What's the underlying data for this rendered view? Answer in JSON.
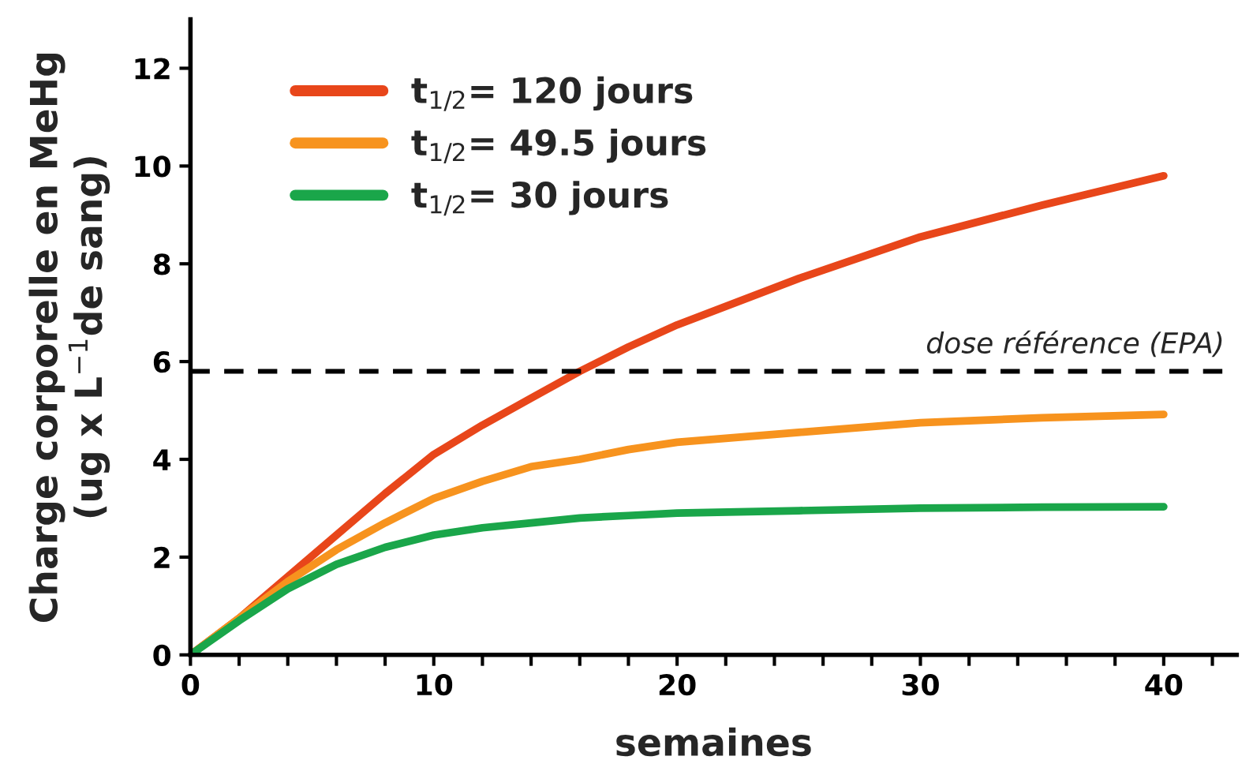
{
  "chart_data": {
    "type": "line",
    "xlabel": "semaines",
    "ylabel": "Charge corporelle en MeHg\n(ug x L$^{−1}$de sang)",
    "x": [
      0,
      2,
      4,
      6,
      8,
      10,
      12,
      14,
      16,
      18,
      20,
      25,
      30,
      35,
      40
    ],
    "series": [
      {
        "name": "t$_{1/2}$= 120 jours",
        "color": "#e8461a",
        "values": [
          0,
          0.75,
          1.6,
          2.45,
          3.3,
          4.1,
          4.7,
          5.25,
          5.8,
          6.3,
          6.75,
          7.7,
          8.55,
          9.2,
          9.8
        ]
      },
      {
        "name": "t$_{1/2}$= 49.5 jours",
        "color": "#f7931e",
        "values": [
          0,
          0.75,
          1.5,
          2.15,
          2.7,
          3.2,
          3.55,
          3.85,
          4.0,
          4.2,
          4.35,
          4.55,
          4.75,
          4.85,
          4.92
        ]
      },
      {
        "name": "t$_{1/2}$= 30 jours",
        "color": "#1aa64a",
        "values": [
          0,
          0.7,
          1.35,
          1.85,
          2.2,
          2.45,
          2.6,
          2.7,
          2.8,
          2.85,
          2.9,
          2.95,
          3.0,
          3.02,
          3.03
        ]
      }
    ],
    "xlim": [
      0,
      43
    ],
    "ylim": [
      0,
      13
    ],
    "xticks": [
      0,
      {
        "value": 2,
        "label": null
      },
      {
        "value": 4,
        "label": null
      },
      {
        "value": 6,
        "label": null
      },
      {
        "value": 8,
        "label": null
      },
      10,
      {
        "value": 12,
        "label": null
      },
      {
        "value": 14,
        "label": null
      },
      {
        "value": 16,
        "label": null
      },
      {
        "value": 18,
        "label": null
      },
      20,
      {
        "value": 22,
        "label": null
      },
      {
        "value": 24,
        "label": null
      },
      {
        "value": 26,
        "label": null
      },
      {
        "value": 28,
        "label": null
      },
      30,
      {
        "value": 32,
        "label": null
      },
      {
        "value": 34,
        "label": null
      },
      {
        "value": 36,
        "label": null
      },
      {
        "value": 38,
        "label": null
      },
      40,
      {
        "value": 42,
        "label": null
      }
    ],
    "yticks": [
      0,
      2,
      4,
      6,
      8,
      10,
      12
    ],
    "ref_lines": [
      {
        "axis": "y",
        "value": 5.8,
        "label": "dose référence (EPA)",
        "color": "#000000",
        "line_style": "dashed"
      }
    ],
    "legend": "top left",
    "grid": false,
    "marker": "none",
    "line_style": "solid"
  }
}
